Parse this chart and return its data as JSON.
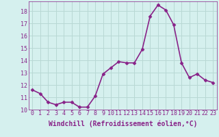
{
  "x": [
    0,
    1,
    2,
    3,
    4,
    5,
    6,
    7,
    8,
    9,
    10,
    11,
    12,
    13,
    14,
    15,
    16,
    17,
    18,
    19,
    20,
    21,
    22,
    23
  ],
  "y": [
    11.6,
    11.3,
    10.6,
    10.4,
    10.6,
    10.6,
    10.2,
    10.2,
    11.1,
    12.9,
    13.4,
    13.9,
    13.8,
    13.8,
    14.9,
    17.6,
    18.5,
    18.1,
    16.9,
    13.8,
    12.6,
    12.9,
    12.4,
    12.2
  ],
  "line_color": "#882288",
  "marker": "D",
  "marker_size": 2.5,
  "xlabel": "Windchill (Refroidissement éolien,°C)",
  "xlabel_fontsize": 7,
  "ylim": [
    10.0,
    18.8
  ],
  "xlim": [
    -0.5,
    23.5
  ],
  "yticks": [
    10,
    11,
    12,
    13,
    14,
    15,
    16,
    17,
    18
  ],
  "xticks": [
    0,
    1,
    2,
    3,
    4,
    5,
    6,
    7,
    8,
    9,
    10,
    11,
    12,
    13,
    14,
    15,
    16,
    17,
    18,
    19,
    20,
    21,
    22,
    23
  ],
  "bg_color": "#d5f0ee",
  "grid_color": "#b8d8d4",
  "tick_color": "#882288",
  "tick_fontsize": 6,
  "linewidth": 1.2
}
